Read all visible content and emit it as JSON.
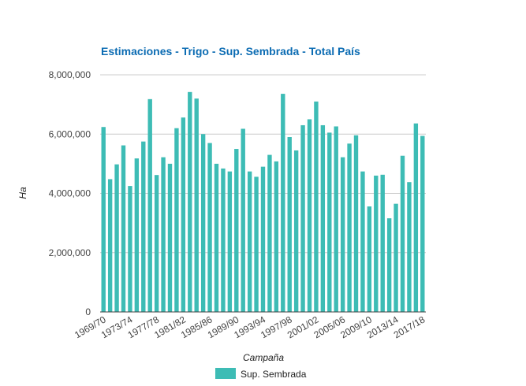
{
  "chart_data": {
    "type": "bar",
    "title": "Estimaciones - Trigo - Sup. Sembrada - Total País",
    "xlabel": "Campaña",
    "ylabel": "Ha",
    "ylim": [
      0,
      8000000
    ],
    "yticks": [
      0,
      2000000,
      4000000,
      6000000,
      8000000
    ],
    "ytick_labels": [
      "0",
      "2,000,000",
      "4,000,000",
      "6,000,000",
      "8,000,000"
    ],
    "grid": true,
    "legend_position": "bottom",
    "categories": [
      "1969/70",
      "1970/71",
      "1971/72",
      "1972/73",
      "1973/74",
      "1974/75",
      "1975/76",
      "1976/77",
      "1977/78",
      "1978/79",
      "1979/80",
      "1980/81",
      "1981/82",
      "1982/83",
      "1983/84",
      "1984/85",
      "1985/86",
      "1986/87",
      "1987/88",
      "1988/89",
      "1989/90",
      "1990/91",
      "1991/92",
      "1992/93",
      "1993/94",
      "1994/95",
      "1995/96",
      "1996/97",
      "1997/98",
      "1998/99",
      "1999/00",
      "2000/01",
      "2001/02",
      "2002/03",
      "2003/04",
      "2004/05",
      "2005/06",
      "2006/07",
      "2007/08",
      "2008/09",
      "2009/10",
      "2010/11",
      "2011/12",
      "2012/13",
      "2013/14",
      "2014/15",
      "2015/16",
      "2016/17",
      "2017/18"
    ],
    "x_tick_labels": [
      "1969/70",
      "1973/74",
      "1977/78",
      "1981/82",
      "1985/86",
      "1989/90",
      "1993/94",
      "1997/98",
      "2001/02",
      "2005/06",
      "2009/10",
      "2013/14",
      "2017/18"
    ],
    "series": [
      {
        "name": "Sup. Sembrada",
        "color": "#3dbcb5",
        "values": [
          6240000,
          4480000,
          4980000,
          5620000,
          4250000,
          5180000,
          5750000,
          7180000,
          4620000,
          5220000,
          5000000,
          6200000,
          6560000,
          7420000,
          7200000,
          6000000,
          5700000,
          5000000,
          4840000,
          4740000,
          5500000,
          6180000,
          4740000,
          4560000,
          4900000,
          5300000,
          5080000,
          7360000,
          5900000,
          5450000,
          6300000,
          6500000,
          7100000,
          6300000,
          6050000,
          6260000,
          5220000,
          5680000,
          5960000,
          4740000,
          3560000,
          4600000,
          4630000,
          3160000,
          3650000,
          5270000,
          4380000,
          6360000,
          5940000
        ]
      }
    ]
  }
}
